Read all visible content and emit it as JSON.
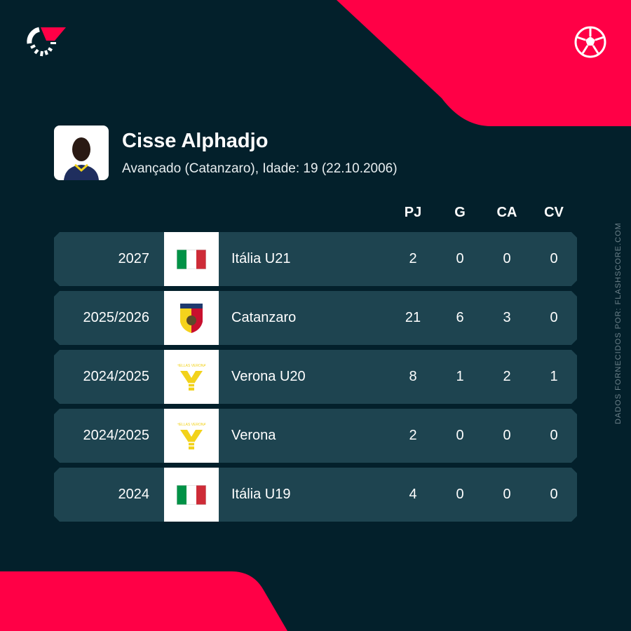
{
  "colors": {
    "background": "#03202b",
    "accent": "#ff0046",
    "row": "#1e4450"
  },
  "icons": {
    "brand": "flashscore-logo-icon",
    "sport": "football-icon"
  },
  "player": {
    "name": "Cisse Alphadjo",
    "details": "Avançado (Catanzaro), Idade: 19 (22.10.2006)"
  },
  "table": {
    "headers": [
      "PJ",
      "G",
      "CA",
      "CV"
    ],
    "rows": [
      {
        "season": "2027",
        "team": "Itália U21",
        "badge": "italy-flag-icon",
        "pj": "2",
        "g": "0",
        "ca": "0",
        "cv": "0"
      },
      {
        "season": "2025/2026",
        "team": "Catanzaro",
        "badge": "catanzaro-crest-icon",
        "pj": "21",
        "g": "6",
        "ca": "3",
        "cv": "0"
      },
      {
        "season": "2024/2025",
        "team": "Verona U20",
        "badge": "verona-crest-icon",
        "pj": "8",
        "g": "1",
        "ca": "2",
        "cv": "1"
      },
      {
        "season": "2024/2025",
        "team": "Verona",
        "badge": "verona-crest-icon",
        "pj": "2",
        "g": "0",
        "ca": "0",
        "cv": "0"
      },
      {
        "season": "2024",
        "team": "Itália U19",
        "badge": "italy-flag-icon",
        "pj": "4",
        "g": "0",
        "ca": "0",
        "cv": "0"
      }
    ]
  },
  "credit": "DADOS FORNECIDOS POR: FLASHSCORE.COM"
}
